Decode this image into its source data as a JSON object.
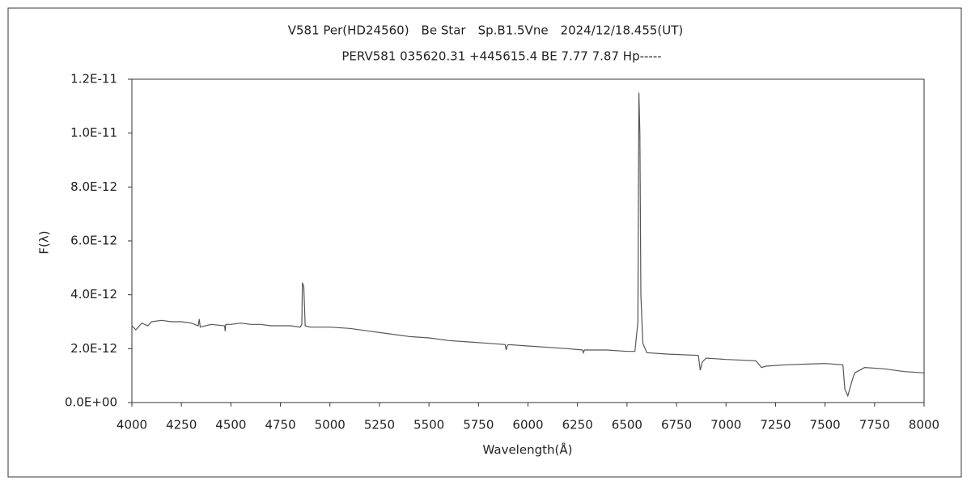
{
  "chart_data": {
    "type": "line",
    "title": "V581 Per(HD24560)　Be Star　Sp.B1.5Vne　2024/12/18.455(UT)",
    "subtitle": "PERV581 035620.31 +445615.4 BE 7.77 7.87 Hp-----",
    "x_label": "Wavelength(Å)",
    "y_label": "F(λ)",
    "x": [
      4000,
      4020,
      4050,
      4080,
      4100,
      4150,
      4200,
      4250,
      4300,
      4335,
      4340,
      4345,
      4400,
      4468,
      4471,
      4474,
      4500,
      4550,
      4600,
      4650,
      4700,
      4800,
      4850,
      4858,
      4861,
      4868,
      4875,
      4900,
      5000,
      5100,
      5200,
      5300,
      5400,
      5500,
      5600,
      5700,
      5800,
      5885,
      5890,
      5895,
      5900,
      6000,
      6100,
      6200,
      6275,
      6280,
      6285,
      6300,
      6400,
      6500,
      6540,
      6555,
      6560,
      6565,
      6570,
      6580,
      6600,
      6700,
      6860,
      6870,
      6880,
      6900,
      7000,
      7150,
      7180,
      7200,
      7300,
      7500,
      7590,
      7600,
      7615,
      7640,
      7650,
      7700,
      7800,
      7900,
      8000
    ],
    "series": [
      {
        "name": "F(λ)",
        "color": "#555555",
        "values": [
          2.85e-12,
          2.7e-12,
          2.95e-12,
          2.85e-12,
          3e-12,
          3.05e-12,
          3e-12,
          3e-12,
          2.95e-12,
          2.85e-12,
          3.1e-12,
          2.8e-12,
          2.9e-12,
          2.85e-12,
          2.65e-12,
          2.9e-12,
          2.9e-12,
          2.95e-12,
          2.9e-12,
          2.9e-12,
          2.85e-12,
          2.85e-12,
          2.8e-12,
          2.9e-12,
          4.45e-12,
          4.3e-12,
          2.85e-12,
          2.8e-12,
          2.8e-12,
          2.75e-12,
          2.65e-12,
          2.55e-12,
          2.45e-12,
          2.4e-12,
          2.3e-12,
          2.25e-12,
          2.2e-12,
          2.15e-12,
          1.95e-12,
          2.1e-12,
          2.15e-12,
          2.1e-12,
          2.05e-12,
          2e-12,
          1.95e-12,
          1.85e-12,
          1.95e-12,
          1.95e-12,
          1.95e-12,
          1.9e-12,
          1.9e-12,
          3e-12,
          1.15e-11,
          1e-11,
          4e-12,
          2.2e-12,
          1.85e-12,
          1.8e-12,
          1.75e-12,
          1.2e-12,
          1.5e-12,
          1.65e-12,
          1.6e-12,
          1.55e-12,
          1.3e-12,
          1.35e-12,
          1.4e-12,
          1.45e-12,
          1.4e-12,
          5e-13,
          2.5e-13,
          9e-13,
          1.1e-12,
          1.3e-12,
          1.25e-12,
          1.15e-12,
          1.1e-12
        ]
      }
    ],
    "xlim": [
      4000,
      8000
    ],
    "xticks": [
      4000,
      4250,
      4500,
      4750,
      5000,
      5250,
      5500,
      5750,
      6000,
      6250,
      6500,
      6750,
      7000,
      7250,
      7500,
      7750,
      8000
    ],
    "ylim": [
      0,
      1.2e-11
    ],
    "yticks": [
      {
        "value": 0,
        "label": "0.0E+00"
      },
      {
        "value": 2e-12,
        "label": "2.0E-12"
      },
      {
        "value": 4e-12,
        "label": "4.0E-12"
      },
      {
        "value": 6e-12,
        "label": "6.0E-12"
      },
      {
        "value": 8e-12,
        "label": "8.0E-12"
      },
      {
        "value": 1e-11,
        "label": "1.0E-11"
      },
      {
        "value": 1.2e-11,
        "label": "1.2E-11"
      }
    ],
    "grid": false
  }
}
